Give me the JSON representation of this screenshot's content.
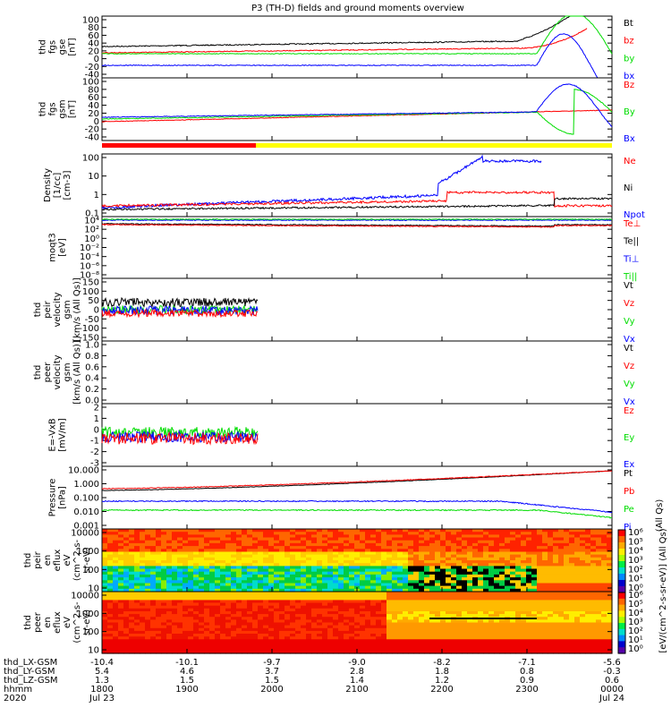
{
  "title": "P3 (TH-D) fields and ground moments overview",
  "colors": {
    "black": "#000000",
    "red": "#ff0000",
    "green": "#00dd00",
    "blue": "#0000ff",
    "yellow": "#ffff00"
  },
  "chart_data": {
    "type": "line",
    "x_time_labels": [
      "1800",
      "1900",
      "2000",
      "2100",
      "2200",
      "2300",
      "0000"
    ],
    "x_date_labels": {
      "start": "2020",
      "d1": "Jul 23",
      "d2": "Jul 24"
    },
    "ephemeris": {
      "row_labels": [
        "thd_LX-GSM",
        "thd_LY-GSM",
        "thd_LZ-GSM",
        "hhmm",
        "2020"
      ],
      "lx": [
        "-10.4",
        "-10.1",
        "-9.7",
        "-9.0",
        "-8.2",
        "-7.1",
        "-5.6"
      ],
      "ly": [
        "5.4",
        "4.6",
        "3.7",
        "2.8",
        "1.8",
        "0.8",
        "-0.3"
      ],
      "lz": [
        "1.3",
        "1.5",
        "1.5",
        "1.4",
        "1.2",
        "0.9",
        "0.6"
      ]
    },
    "panels": [
      {
        "id": "fgs_gse",
        "ylabel": [
          "thd",
          "fgs",
          "gse",
          "[nT]"
        ],
        "ticks": [
          "100",
          "80",
          "60",
          "40",
          "20",
          "0",
          "-20",
          "-40"
        ],
        "legend": [
          {
            "text": "Bt",
            "color": "#000000"
          },
          {
            "text": "bz",
            "color": "#ff0000"
          },
          {
            "text": "by",
            "color": "#00dd00"
          },
          {
            "text": "bx",
            "color": "#0000ff"
          }
        ]
      },
      {
        "id": "fgs_gsm",
        "ylabel": [
          "thd",
          "fgs",
          "gsm",
          "[nT]"
        ],
        "ticks": [
          "100",
          "80",
          "60",
          "40",
          "20",
          "0",
          "-20",
          "-40"
        ],
        "legend": [
          {
            "text": "Bz",
            "color": "#ff0000"
          },
          {
            "text": "By",
            "color": "#00dd00"
          },
          {
            "text": "Bx",
            "color": "#0000ff"
          }
        ]
      },
      {
        "id": "density",
        "ylabel": [
          "Density",
          "[1/cc]",
          "[cm-3]"
        ],
        "ticks": [
          "100",
          "10",
          "1",
          "0.1"
        ],
        "legend": [
          {
            "text": "Ne",
            "color": "#ff0000"
          },
          {
            "text": "Ni",
            "color": "#000000"
          },
          {
            "text": "Npot",
            "color": "#0000ff"
          }
        ]
      },
      {
        "id": "temp",
        "ylabel": [
          "moqt3",
          "[eV]"
        ],
        "ticks": [
          "10⁴",
          "10²",
          "10⁰",
          "10⁻²",
          "10⁻⁴",
          "10⁻⁶",
          "10⁻⁸"
        ],
        "legend": [
          {
            "text": "Te⊥",
            "color": "#ff0000"
          },
          {
            "text": "Te||",
            "color": "#000000"
          },
          {
            "text": "Ti⊥",
            "color": "#0000ff"
          },
          {
            "text": "Ti||",
            "color": "#00dd00"
          }
        ]
      },
      {
        "id": "peir_vel",
        "ylabel": [
          "thd",
          "peir",
          "velocity",
          "gsm",
          "[km/s (All Qs)]"
        ],
        "ticks": [
          "150",
          "100",
          "50",
          "0",
          "-50",
          "-100",
          "-150"
        ],
        "legend": [
          {
            "text": "Vt",
            "color": "#000000"
          },
          {
            "text": "Vz",
            "color": "#ff0000"
          },
          {
            "text": "Vy",
            "color": "#00dd00"
          },
          {
            "text": "Vx",
            "color": "#0000ff"
          }
        ]
      },
      {
        "id": "peer_vel",
        "ylabel": [
          "thd",
          "peer",
          "velocity",
          "gsm",
          "[km/s (All Qs)]"
        ],
        "ticks": [
          "1.0",
          "0.8",
          "0.6",
          "0.4",
          "0.2",
          "0.0"
        ],
        "legend": [
          {
            "text": "Vt",
            "color": "#000000"
          },
          {
            "text": "Vz",
            "color": "#ff0000"
          },
          {
            "text": "Vy",
            "color": "#00dd00"
          },
          {
            "text": "Vx",
            "color": "#0000ff"
          }
        ]
      },
      {
        "id": "efield",
        "ylabel": [
          "E=-VxB",
          "[mV/m]"
        ],
        "ticks": [
          "2",
          "1",
          "0",
          "-1",
          "-2",
          "-3"
        ],
        "legend": [
          {
            "text": "Ez",
            "color": "#ff0000"
          },
          {
            "text": "Ey",
            "color": "#00dd00"
          },
          {
            "text": "Ex",
            "color": "#0000ff"
          }
        ]
      },
      {
        "id": "pressure",
        "ylabel": [
          "Pressure",
          "[nPa]"
        ],
        "ticks": [
          "10.000",
          "1.000",
          "0.100",
          "0.010",
          "0.001"
        ],
        "legend": [
          {
            "text": "Pt",
            "color": "#000000"
          },
          {
            "text": "Pb",
            "color": "#ff0000"
          },
          {
            "text": "Pe",
            "color": "#00dd00"
          },
          {
            "text": "Pi",
            "color": "#0000ff"
          }
        ],
        "side_label": "(All Qs)"
      },
      {
        "id": "peir_eflux",
        "ylabel": [
          "thd",
          "peir",
          "en",
          "eflux",
          "eV",
          "(cm^2-s-",
          "sr-eV)"
        ],
        "ticks": [
          "10000",
          "1000",
          "100",
          "10"
        ]
      },
      {
        "id": "peer_eflux",
        "ylabel": [
          "thd",
          "peer",
          "en",
          "eflux",
          "eV",
          "(cm^2-s-",
          "sr-eV)"
        ],
        "ticks": [
          "10000",
          "1000",
          "100",
          "10"
        ]
      }
    ],
    "colorbar": {
      "ticks": [
        "10⁶",
        "10⁵",
        "10⁴",
        "10³",
        "10²",
        "10¹",
        "10⁰"
      ],
      "label": "[eV/(cm^2-s-sr-eV)] (All Qs)"
    }
  }
}
